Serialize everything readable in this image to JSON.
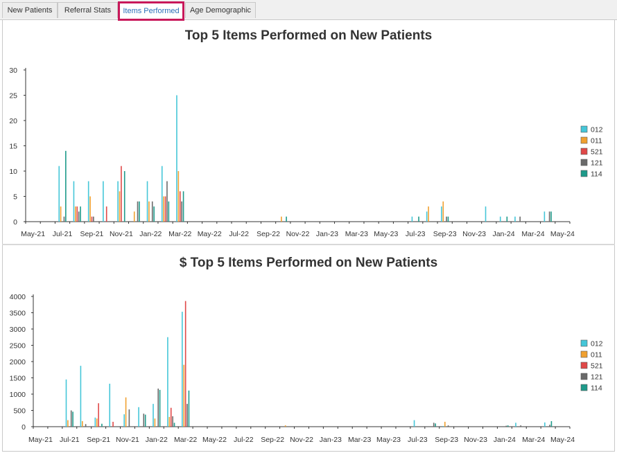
{
  "tabs": [
    {
      "label": "New Patients"
    },
    {
      "label": "Referral Stats"
    },
    {
      "label": "Items Performed",
      "active": true
    },
    {
      "label": "Age Demographic"
    }
  ],
  "colors": {
    "012": "#45c6d8",
    "011": "#f0a030",
    "521": "#e04848",
    "121": "#6a6a6a",
    "114": "#1e9a8a",
    "active_tab_border": "#c8185a",
    "active_tab_text": "#2a6fb8"
  },
  "chart_data": [
    {
      "type": "bar",
      "title": "Top 5 Items Performed on New Patients",
      "xlabel": "",
      "ylabel": "",
      "ylim": [
        0,
        30
      ],
      "yticks": [
        "0",
        "5",
        "10",
        "15",
        "20",
        "25",
        "30"
      ],
      "xticks": [
        "May-21",
        "Jul-21",
        "Sep-21",
        "Nov-21",
        "Jan-22",
        "Mar-22",
        "May-22",
        "Jul-22",
        "Sep-22",
        "Nov-22",
        "Jan-23",
        "Mar-23",
        "May-23",
        "Jul-23",
        "Sep-23",
        "Nov-23",
        "Jan-24",
        "Mar-24",
        "May-24"
      ],
      "legend_position": "right",
      "legend": [
        "012",
        "011",
        "521",
        "121",
        "114"
      ],
      "categories": [
        "Jul-21",
        "Aug-21",
        "Sep-21",
        "Oct-21",
        "Nov-21",
        "Dec-21",
        "Jan-22",
        "Feb-22",
        "Mar-22",
        "Oct-22",
        "Jul-23",
        "Aug-23",
        "Sep-23",
        "Dec-23",
        "Jan-24",
        "Feb-24",
        "Apr-24"
      ],
      "series": [
        {
          "name": "012",
          "values": [
            11,
            8,
            8,
            8,
            8,
            0,
            8,
            11,
            25,
            0,
            1,
            2,
            3,
            3,
            1,
            1,
            2
          ]
        },
        {
          "name": "011",
          "values": [
            3,
            3,
            5,
            0,
            6,
            2,
            4,
            5,
            10,
            1,
            0,
            3,
            4,
            0,
            0,
            0,
            0
          ]
        },
        {
          "name": "521",
          "values": [
            0,
            3,
            1,
            3,
            11,
            0,
            0,
            5,
            6,
            0,
            0,
            0,
            0,
            0,
            0,
            0,
            0
          ]
        },
        {
          "name": "121",
          "values": [
            1,
            2,
            1,
            0,
            0,
            4,
            4,
            8,
            4,
            0,
            0,
            0,
            1,
            0,
            0,
            1,
            2
          ]
        },
        {
          "name": "114",
          "values": [
            14,
            3,
            0,
            0,
            10,
            4,
            3,
            4,
            6,
            1,
            1,
            0,
            1,
            0,
            1,
            0,
            2
          ]
        }
      ]
    },
    {
      "type": "bar",
      "title": "$ Top 5 Items Performed on New Patients",
      "xlabel": "",
      "ylabel": "",
      "ylim": [
        0,
        4000
      ],
      "yticks": [
        "0",
        "500",
        "1000",
        "1500",
        "2000",
        "2500",
        "3000",
        "3500",
        "4000"
      ],
      "xticks": [
        "May-21",
        "Jul-21",
        "Sep-21",
        "Nov-21",
        "Jan-22",
        "Mar-22",
        "May-22",
        "Jul-22",
        "Sep-22",
        "Nov-22",
        "Jan-23",
        "Mar-23",
        "May-23",
        "Jul-23",
        "Sep-23",
        "Nov-23",
        "Jan-24",
        "Mar-24",
        "May-24"
      ],
      "legend_position": "right",
      "legend": [
        "012",
        "011",
        "521",
        "121",
        "114"
      ],
      "categories": [
        "Jul-21",
        "Aug-21",
        "Sep-21",
        "Oct-21",
        "Nov-21",
        "Dec-21",
        "Jan-22",
        "Feb-22",
        "Mar-22",
        "Oct-22",
        "Jul-23",
        "Aug-23",
        "Sep-23",
        "Dec-23",
        "Jan-24",
        "Feb-24",
        "Apr-24"
      ],
      "series": [
        {
          "name": "012",
          "values": [
            1450,
            1870,
            280,
            1320,
            380,
            600,
            700,
            2750,
            3530,
            0,
            200,
            0,
            20,
            0,
            0,
            120,
            130
          ]
        },
        {
          "name": "011",
          "values": [
            200,
            170,
            250,
            0,
            900,
            0,
            250,
            300,
            1900,
            40,
            0,
            0,
            150,
            0,
            0,
            0,
            0
          ]
        },
        {
          "name": "521",
          "values": [
            0,
            0,
            720,
            150,
            0,
            0,
            0,
            580,
            3860,
            0,
            0,
            0,
            0,
            0,
            0,
            0,
            0
          ]
        },
        {
          "name": "121",
          "values": [
            500,
            80,
            0,
            0,
            530,
            400,
            1170,
            320,
            700,
            0,
            0,
            120,
            40,
            0,
            30,
            40,
            60
          ]
        },
        {
          "name": "114",
          "values": [
            460,
            0,
            90,
            0,
            0,
            370,
            1130,
            120,
            1110,
            0,
            0,
            100,
            0,
            0,
            40,
            0,
            170
          ]
        }
      ]
    }
  ]
}
